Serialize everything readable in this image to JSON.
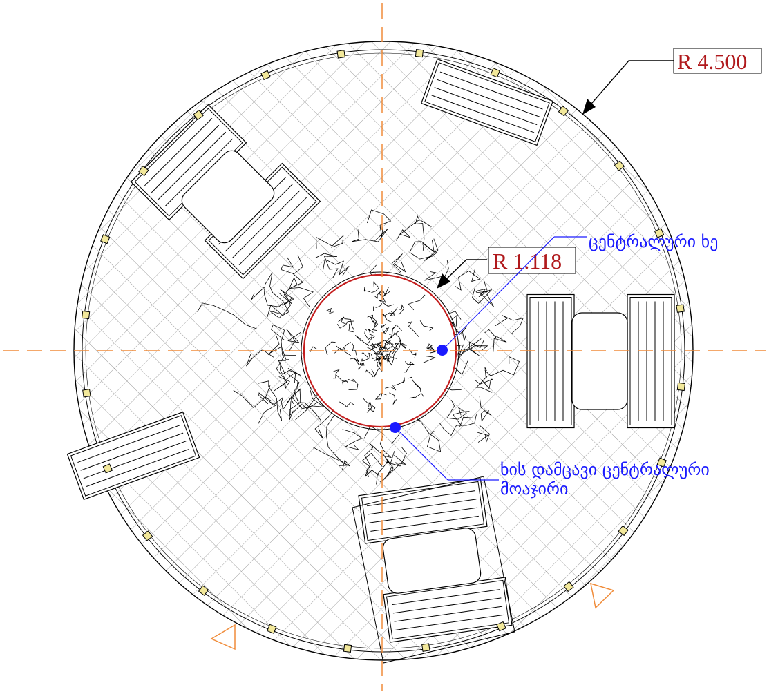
{
  "drawing": {
    "outer_radius_label": "R 4.500",
    "inner_radius_label": "R 1.118",
    "note_tree": "ცენტრალური ხე",
    "note_guard_line1": "ხის დამცავი ცენტრალური",
    "note_guard_line2": "მოაჯირი"
  },
  "colors": {
    "axis": "#f08c3a",
    "dimension_text": "#b0191c",
    "annotation": "#1a1aff",
    "linework": "#000000",
    "inner_ring": "#c41e1e",
    "post_fill": "#f2e89a"
  },
  "benches": [
    {
      "id": "nw-1",
      "rotation": -45
    },
    {
      "id": "nw-2",
      "rotation": -45
    },
    {
      "id": "ne",
      "rotation": 20
    },
    {
      "id": "e-1",
      "rotation": 0
    },
    {
      "id": "e-2",
      "rotation": 0
    },
    {
      "id": "sw",
      "rotation": -20
    },
    {
      "id": "s-1",
      "rotation": -8
    },
    {
      "id": "s-2",
      "rotation": -8
    }
  ]
}
